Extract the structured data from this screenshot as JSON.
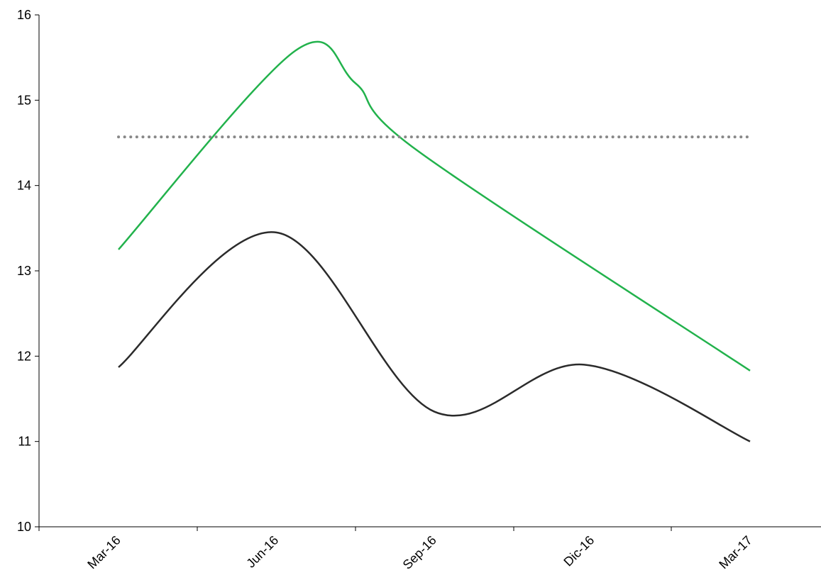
{
  "chart_data": {
    "type": "line",
    "title": "",
    "xlabel": "",
    "ylabel": "",
    "categories": [
      "Mar-16",
      "Jun-16",
      "Sep-16",
      "Dic-16",
      "Mar-17"
    ],
    "x_range": [
      0,
      4
    ],
    "ylim": [
      10,
      16
    ],
    "y_ticks": [
      "10",
      "11",
      "12",
      "13",
      "14",
      "15",
      "16"
    ],
    "grid": false,
    "legend": "none",
    "smooth": true,
    "series": [
      {
        "color": "#22b24c",
        "style": "solid",
        "points": [
          [
            0,
            13.25
          ],
          [
            1.12,
            15.58
          ],
          [
            1.5,
            15.2
          ],
          [
            1.9,
            14.4
          ],
          [
            4,
            11.83
          ]
        ]
      },
      {
        "color": "#2b2b2b",
        "style": "solid",
        "points": [
          [
            0,
            11.87
          ],
          [
            1.0,
            13.45
          ],
          [
            2.0,
            11.35
          ],
          [
            2.95,
            11.9
          ],
          [
            4,
            11.0
          ]
        ]
      },
      {
        "color": "#888888",
        "style": "dotted",
        "points": [
          [
            0,
            14.57
          ],
          [
            4,
            14.57
          ]
        ]
      }
    ]
  }
}
